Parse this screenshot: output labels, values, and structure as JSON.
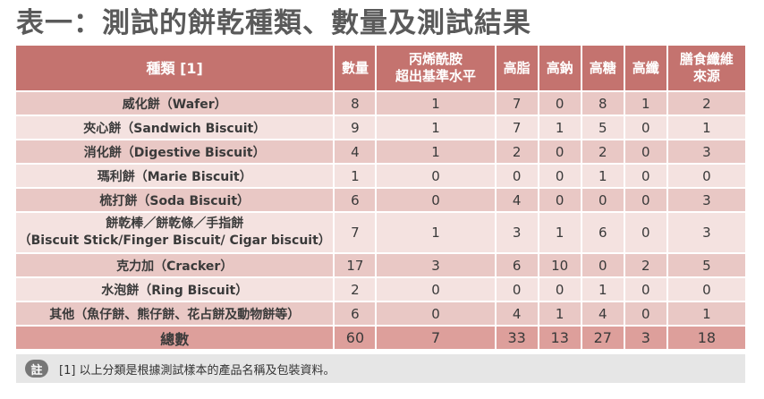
{
  "title": "表一：測試的餅乾種類、數量及測試結果",
  "header": {
    "type": "種類 [1]",
    "count": "數量",
    "acryl_line1": "丙烯酰胺",
    "acryl_line2": "超出基準水平",
    "fat": "高脂",
    "sodium": "高鈉",
    "sugar": "高糖",
    "fibre": "高纖",
    "fibre_src_line1": "膳食纖維",
    "fibre_src_line2": "來源"
  },
  "rows": [
    {
      "name": "威化餅（Wafer）",
      "count": "8",
      "acryl": "1",
      "fat": "7",
      "sodium": "0",
      "sugar": "8",
      "fibre": "1",
      "fibre_src": "2"
    },
    {
      "name": "夾心餅（Sandwich Biscuit）",
      "count": "9",
      "acryl": "1",
      "fat": "7",
      "sodium": "1",
      "sugar": "5",
      "fibre": "0",
      "fibre_src": "1"
    },
    {
      "name": "消化餅（Digestive Biscuit）",
      "count": "4",
      "acryl": "1",
      "fat": "2",
      "sodium": "0",
      "sugar": "2",
      "fibre": "0",
      "fibre_src": "3"
    },
    {
      "name": "瑪利餅（Marie Biscuit）",
      "count": "1",
      "acryl": "0",
      "fat": "0",
      "sodium": "0",
      "sugar": "1",
      "fibre": "0",
      "fibre_src": "0"
    },
    {
      "name": "梳打餅（Soda Biscuit）",
      "count": "6",
      "acryl": "0",
      "fat": "4",
      "sodium": "0",
      "sugar": "0",
      "fibre": "0",
      "fibre_src": "3"
    },
    {
      "name": "餅乾棒／餅乾條／手指餅",
      "name2": "（Biscuit Stick/Finger Biscuit/ Cigar biscuit）",
      "count": "7",
      "acryl": "1",
      "fat": "3",
      "sodium": "1",
      "sugar": "6",
      "fibre": "0",
      "fibre_src": "3"
    },
    {
      "name": "克力加（Cracker）",
      "count": "17",
      "acryl": "3",
      "fat": "6",
      "sodium": "10",
      "sugar": "0",
      "fibre": "2",
      "fibre_src": "5"
    },
    {
      "name": "水泡餅（Ring Biscuit）",
      "count": "2",
      "acryl": "0",
      "fat": "0",
      "sodium": "0",
      "sugar": "1",
      "fibre": "0",
      "fibre_src": "0"
    },
    {
      "name": "其他（魚仔餅、熊仔餅、花占餅及動物餅等）",
      "count": "6",
      "acryl": "0",
      "fat": "4",
      "sodium": "1",
      "sugar": "4",
      "fibre": "0",
      "fibre_src": "1"
    }
  ],
  "total": {
    "name": "總數",
    "count": "60",
    "acryl": "7",
    "fat": "33",
    "sodium": "13",
    "sugar": "27",
    "fibre": "3",
    "fibre_src": "18"
  },
  "note": {
    "badge": "註",
    "text": "[1] 以上分類是根據測試樣本的產品名稱及包裝資料。"
  },
  "colors": {
    "header_bg": "#c4736f",
    "row_dark": "#e9c8c5",
    "row_light": "#f4e2e0",
    "total_bg": "#dd9f9b",
    "note_bg": "#e6e6e6"
  }
}
